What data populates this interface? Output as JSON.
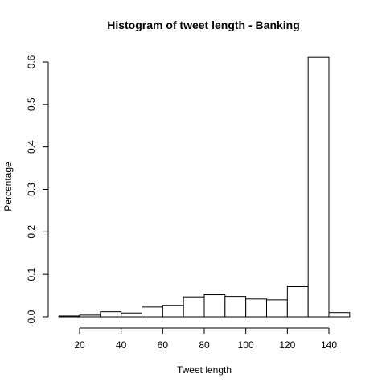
{
  "chart_data": {
    "type": "bar",
    "title": "Histogram of tweet length - Banking",
    "xlabel": "Tweet length",
    "ylabel": "Percentage",
    "bin_edges": [
      10,
      20,
      30,
      40,
      50,
      60,
      70,
      80,
      90,
      100,
      110,
      120,
      130,
      140,
      150
    ],
    "values": [
      0.002,
      0.004,
      0.012,
      0.009,
      0.023,
      0.027,
      0.047,
      0.052,
      0.048,
      0.042,
      0.04,
      0.071,
      0.611,
      0.01
    ],
    "x_ticks": [
      20,
      40,
      60,
      80,
      100,
      120,
      140
    ],
    "x_tick_labels": [
      "20",
      "40",
      "60",
      "80",
      "100",
      "120",
      "140"
    ],
    "y_ticks": [
      0.0,
      0.1,
      0.2,
      0.3,
      0.4,
      0.5,
      0.6
    ],
    "y_tick_labels": [
      "0.0",
      "0.1",
      "0.2",
      "0.3",
      "0.4",
      "0.5",
      "0.6"
    ],
    "xlim": [
      10,
      150
    ],
    "ylim": [
      0,
      0.6
    ],
    "grid": false,
    "bar_fill": "#ffffff",
    "bar_stroke": "#000000"
  }
}
